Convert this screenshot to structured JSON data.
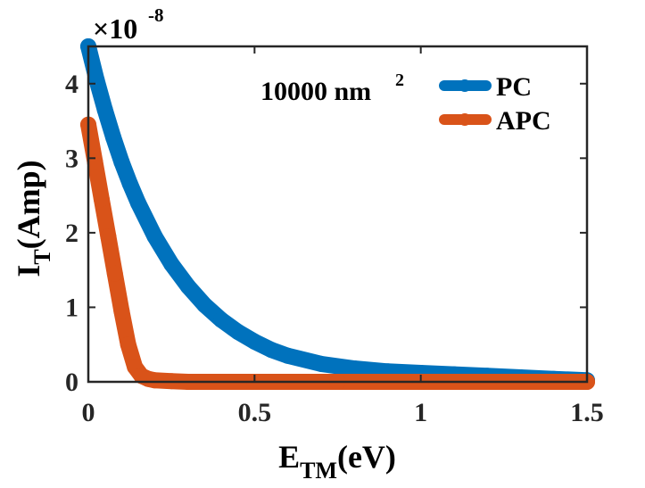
{
  "chart_data": {
    "type": "line",
    "title": "",
    "xlabel_main": "E",
    "xlabel_sub": "TM",
    "xlabel_tail": "(eV)",
    "ylabel_main": "I",
    "ylabel_sub": "T",
    "ylabel_tail": "(Amp)",
    "xlim": [
      0,
      1.5
    ],
    "ylim": [
      0,
      4.5
    ],
    "y_exponent_base": "×10",
    "y_exponent_power": "-8",
    "x_ticks": [
      0,
      0.5,
      1,
      1.5
    ],
    "x_tick_labels": [
      "0",
      "0.5",
      "1",
      "1.5"
    ],
    "y_ticks": [
      0,
      1,
      2,
      3,
      4
    ],
    "y_tick_labels": [
      "0",
      "1",
      "2",
      "3",
      "4"
    ],
    "annotation_main": "10000 nm",
    "annotation_sup": "2",
    "legend_position": "top-right",
    "series": [
      {
        "name": "PC",
        "color": "#0072BD",
        "x": [
          0,
          0.025,
          0.05,
          0.075,
          0.1,
          0.125,
          0.15,
          0.2,
          0.25,
          0.3,
          0.35,
          0.4,
          0.45,
          0.5,
          0.55,
          0.6,
          0.7,
          0.8,
          0.9,
          1.0,
          1.1,
          1.2,
          1.3,
          1.4,
          1.5
        ],
        "values": [
          4.5,
          4.05,
          3.65,
          3.28,
          2.95,
          2.66,
          2.4,
          1.95,
          1.58,
          1.28,
          1.03,
          0.83,
          0.67,
          0.54,
          0.43,
          0.35,
          0.24,
          0.18,
          0.14,
          0.12,
          0.1,
          0.08,
          0.06,
          0.04,
          0.02
        ]
      },
      {
        "name": "APC",
        "color": "#D95319",
        "x": [
          0,
          0.02,
          0.04,
          0.06,
          0.08,
          0.1,
          0.12,
          0.14,
          0.16,
          0.18,
          0.2,
          0.25,
          0.3,
          0.5,
          0.75,
          1.0,
          1.25,
          1.5
        ],
        "values": [
          3.45,
          2.95,
          2.45,
          1.95,
          1.45,
          0.95,
          0.5,
          0.2,
          0.08,
          0.04,
          0.02,
          0.01,
          0.0,
          0.0,
          0.0,
          0.0,
          0.0,
          0.0
        ]
      }
    ]
  }
}
